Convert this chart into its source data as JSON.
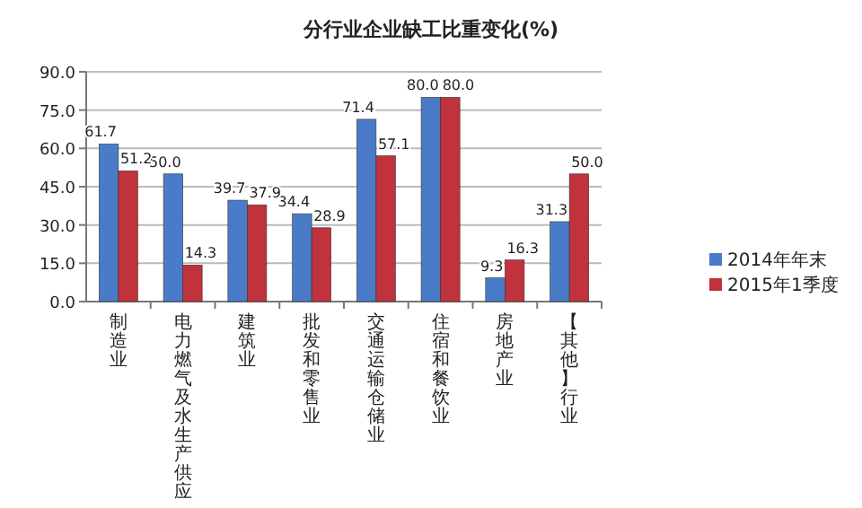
{
  "chart_data": {
    "type": "bar",
    "title": "分行业企业缺工比重变化(%)",
    "categories": [
      "制造业",
      "电力燃气及水生产供应",
      "建筑业",
      "批发和零售业",
      "交通运输仓储业",
      "住宿和餐饮业",
      "房地产业",
      "【其他】行业"
    ],
    "series": [
      {
        "name": "2014年年末",
        "color": "#4a7bc8",
        "values": [
          61.7,
          50.0,
          39.7,
          34.4,
          71.4,
          80.0,
          9.3,
          31.3
        ],
        "value_labels": [
          "61.7",
          "50.0",
          "39.7",
          "34.4",
          "71.4",
          "80.0",
          "9.3",
          "31.3"
        ]
      },
      {
        "name": "2015年1季度",
        "color": "#c0323c",
        "values": [
          51.2,
          14.3,
          37.9,
          28.9,
          57.1,
          80.0,
          16.3,
          50.0
        ],
        "value_labels": [
          "51.2",
          "14.3",
          "37.9",
          "28.9",
          "57.1",
          "80.0",
          "16.3",
          "50.0"
        ]
      }
    ],
    "ylim": [
      0,
      90
    ],
    "yticks": [
      {
        "value": 0,
        "label": "0.0"
      },
      {
        "value": 15,
        "label": "15.0"
      },
      {
        "value": 30,
        "label": "30.0"
      },
      {
        "value": 45,
        "label": "45.0"
      },
      {
        "value": 60,
        "label": "60.0"
      },
      {
        "value": 75,
        "label": "75.0"
      },
      {
        "value": 90,
        "label": "90.0"
      }
    ],
    "grid": "y",
    "legend": "right"
  }
}
